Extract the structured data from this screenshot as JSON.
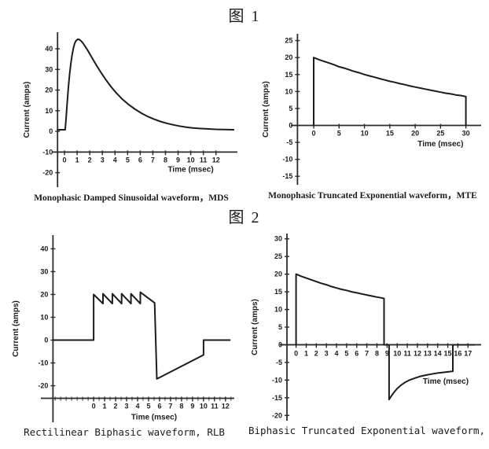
{
  "headings": {
    "figure1": "图 1",
    "figure2": "图 2"
  },
  "colors": {
    "line": "#1c1c1c",
    "axis": "#2b2b2b",
    "text": "#1c1c1c",
    "background": "#ffffff"
  },
  "chart_data": [
    {
      "type": "line",
      "id": "mds",
      "caption": "Monophasic Damped Sinusoidal waveform，MDS",
      "xlabel": "Time (msec)",
      "ylabel": "Current (amps)",
      "x_range": [
        -1.0,
        13.7
      ],
      "y_range": [
        -27,
        48
      ],
      "y_axis_x": -0.55,
      "x_axis_y": -10,
      "x_ticks": [
        0,
        1,
        2,
        3,
        4,
        5,
        6,
        7,
        8,
        9,
        10,
        11,
        12
      ],
      "y_ticks": [
        -20,
        -10,
        0,
        10,
        20,
        30,
        40
      ],
      "x_tick_label_y": -15,
      "xlabel_pos": [
        10,
        -19.5
      ],
      "grid": false,
      "points": [
        [
          -0.55,
          0.8
        ],
        [
          0.05,
          0.8
        ],
        [
          0.12,
          6
        ],
        [
          0.2,
          13
        ],
        [
          0.3,
          21
        ],
        [
          0.4,
          27.5
        ],
        [
          0.5,
          32.8
        ],
        [
          0.6,
          37
        ],
        [
          0.7,
          40.2
        ],
        [
          0.8,
          42.5
        ],
        [
          0.9,
          43.8
        ],
        [
          1.05,
          44.6
        ],
        [
          1.2,
          44.4
        ],
        [
          1.35,
          43.6
        ],
        [
          1.5,
          42.4
        ],
        [
          1.7,
          40.6
        ],
        [
          1.9,
          38.6
        ],
        [
          2.2,
          35.4
        ],
        [
          2.5,
          32.3
        ],
        [
          2.9,
          28.4
        ],
        [
          3.3,
          24.8
        ],
        [
          3.7,
          21.5
        ],
        [
          4.1,
          18.6
        ],
        [
          4.6,
          15.5
        ],
        [
          5.1,
          12.9
        ],
        [
          5.6,
          10.7
        ],
        [
          6.1,
          8.8
        ],
        [
          6.6,
          7.2
        ],
        [
          7.1,
          5.9
        ],
        [
          7.6,
          4.8
        ],
        [
          8.1,
          3.9
        ],
        [
          8.6,
          3.2
        ],
        [
          9.1,
          2.6
        ],
        [
          9.6,
          2.1
        ],
        [
          10.1,
          1.7
        ],
        [
          10.7,
          1.4
        ],
        [
          11.3,
          1.2
        ],
        [
          12,
          1
        ],
        [
          12.7,
          0.9
        ],
        [
          13.4,
          0.8
        ]
      ]
    },
    {
      "type": "line",
      "id": "mte",
      "caption": "Monophasic Truncated Exponential waveform，MTE",
      "xlabel": "Time (msec)",
      "ylabel": "Current (amps)",
      "x_range": [
        -4.5,
        33
      ],
      "y_range": [
        -17.5,
        27
      ],
      "y_axis_x": -3.2,
      "x_axis_y": 0,
      "x_ticks": [
        0,
        5,
        10,
        15,
        20,
        25,
        30
      ],
      "y_ticks": [
        -15,
        -10,
        -5,
        0,
        5,
        10,
        15,
        20,
        25
      ],
      "x_tick_label_y": -3,
      "xlabel_pos": [
        25,
        -6.2
      ],
      "grid": false,
      "points": [
        [
          0,
          0
        ],
        [
          0,
          20
        ],
        [
          1,
          19.4
        ],
        [
          2,
          18.9
        ],
        [
          3,
          18.4
        ],
        [
          4,
          17.9
        ],
        [
          5,
          17.3
        ],
        [
          6,
          16.9
        ],
        [
          7,
          16.4
        ],
        [
          8,
          15.9
        ],
        [
          9,
          15.5
        ],
        [
          10,
          15
        ],
        [
          11,
          14.6
        ],
        [
          12,
          14.2
        ],
        [
          13,
          13.8
        ],
        [
          14,
          13.4
        ],
        [
          15,
          13
        ],
        [
          16,
          12.7
        ],
        [
          17,
          12.3
        ],
        [
          18,
          12
        ],
        [
          19,
          11.6
        ],
        [
          20,
          11.3
        ],
        [
          21,
          11
        ],
        [
          22,
          10.7
        ],
        [
          23,
          10.4
        ],
        [
          24,
          10.1
        ],
        [
          25,
          9.8
        ],
        [
          26,
          9.5
        ],
        [
          27,
          9.3
        ],
        [
          28,
          9
        ],
        [
          29,
          8.8
        ],
        [
          30,
          8.5
        ],
        [
          30,
          0
        ]
      ]
    },
    {
      "type": "line",
      "id": "rlb",
      "caption": "Rectilinear Biphasic waveform, RLB",
      "xlabel": "Time (msec)",
      "ylabel": "Current (amps)",
      "x_range": [
        -4.8,
        12.8
      ],
      "y_range": [
        -36,
        46
      ],
      "y_axis_x": -3.7,
      "x_axis_y": -25.5,
      "x_ticks": [
        0,
        1,
        2,
        3,
        4,
        5,
        6,
        7,
        8,
        9,
        10,
        11,
        12
      ],
      "y_ticks": [
        -20,
        -10,
        0,
        10,
        20,
        30,
        40
      ],
      "x_minor_step": 0.5,
      "x_minor_range": [
        -3.5,
        12.5
      ],
      "x_tick_label_y": -30,
      "xlabel_pos": [
        5.5,
        -34.8
      ],
      "grid": false,
      "points": [
        [
          -3.7,
          0
        ],
        [
          0,
          0
        ],
        [
          0,
          20
        ],
        [
          0.85,
          16
        ],
        [
          0.85,
          20.3
        ],
        [
          1.7,
          16
        ],
        [
          1.7,
          20.3
        ],
        [
          2.55,
          16
        ],
        [
          2.55,
          20.3
        ],
        [
          3.4,
          16
        ],
        [
          3.4,
          20.3
        ],
        [
          4.25,
          16
        ],
        [
          4.25,
          21
        ],
        [
          5.55,
          16.3
        ],
        [
          5.75,
          -17
        ],
        [
          10,
          -6.5
        ],
        [
          10,
          0
        ],
        [
          12.4,
          0
        ]
      ]
    },
    {
      "type": "line",
      "id": "bte",
      "caption": "Biphasic Truncated Exponential waveform, BTE",
      "xlabel": "Time (msec)",
      "ylabel": "Current (amps)",
      "x_range": [
        -1.6,
        18.3
      ],
      "y_range": [
        -21.5,
        31.5
      ],
      "y_axis_x": -0.9,
      "x_axis_y": 0,
      "x_ticks": [
        0,
        1,
        2,
        3,
        4,
        5,
        6,
        7,
        8,
        9,
        10,
        11,
        12,
        13,
        14,
        15,
        16,
        17
      ],
      "y_ticks": [
        -20,
        -15,
        -10,
        -5,
        0,
        5,
        10,
        15,
        20,
        25,
        30
      ],
      "x_tick_label_y": -3.1,
      "xlabel_pos": [
        14.8,
        -11
      ],
      "grid": false,
      "points": [
        [
          0,
          0
        ],
        [
          0,
          20
        ],
        [
          0.5,
          19.4
        ],
        [
          1,
          18.9
        ],
        [
          1.5,
          18.4
        ],
        [
          2,
          17.9
        ],
        [
          2.5,
          17.4
        ],
        [
          3,
          17
        ],
        [
          3.5,
          16.5
        ],
        [
          4,
          16.1
        ],
        [
          4.5,
          15.7
        ],
        [
          5,
          15.4
        ],
        [
          5.5,
          15
        ],
        [
          6,
          14.7
        ],
        [
          6.5,
          14.4
        ],
        [
          7,
          14.1
        ],
        [
          7.5,
          13.8
        ],
        [
          8,
          13.5
        ],
        [
          8.4,
          13.3
        ],
        [
          8.7,
          13.1
        ],
        [
          8.7,
          0
        ],
        [
          9.2,
          0
        ],
        [
          9.2,
          -15.5
        ],
        [
          9.4,
          -14.6
        ],
        [
          9.7,
          -13.4
        ],
        [
          10,
          -12.4
        ],
        [
          10.4,
          -11.4
        ],
        [
          10.8,
          -10.6
        ],
        [
          11.2,
          -10
        ],
        [
          11.7,
          -9.5
        ],
        [
          12.2,
          -9
        ],
        [
          12.8,
          -8.6
        ],
        [
          13.4,
          -8.3
        ],
        [
          14,
          -8
        ],
        [
          14.6,
          -7.8
        ],
        [
          15.2,
          -7.6
        ],
        [
          15.5,
          -7.5
        ],
        [
          15.5,
          0
        ],
        [
          17.6,
          0
        ]
      ]
    }
  ]
}
